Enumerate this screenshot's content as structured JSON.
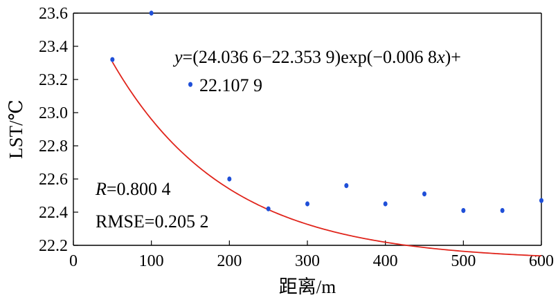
{
  "chart_data": {
    "type": "scatter",
    "xlabel": "距离/m",
    "ylabel": "LST/℃",
    "xlim": [
      0,
      600
    ],
    "ylim": [
      22.2,
      23.6
    ],
    "xticks": [
      0,
      100,
      200,
      300,
      400,
      500,
      600
    ],
    "yticks": [
      "22.2",
      "22.4",
      "22.6",
      "22.8",
      "23.0",
      "23.2",
      "23.4",
      "23.6"
    ],
    "grid": false,
    "colors": {
      "points": "#1f4fd8",
      "fit": "#e0241b",
      "axis": "#000000"
    },
    "series": [
      {
        "type": "scatter",
        "x": [
          50,
          100,
          150,
          200,
          250,
          300,
          350,
          400,
          450,
          500,
          550,
          600
        ],
        "y": [
          23.32,
          23.6,
          23.17,
          22.6,
          22.42,
          22.45,
          22.56,
          22.45,
          22.51,
          22.41,
          22.41,
          22.47
        ]
      },
      {
        "type": "line",
        "formula": "y=(24.0366-22.3539)exp(-0.0068x)+22.1079",
        "x_range": [
          50,
          600
        ]
      }
    ],
    "annotations": {
      "equation_line1_prefix": "y",
      "equation_line1_rest": "=(24.036 6−22.353 9)exp(−0.006 8",
      "equation_line1_x": "x",
      "equation_line1_end": ")+",
      "equation_line2": "22.107 9",
      "r_symbol": "R",
      "r_value": "=0.800 4",
      "rmse": "RMSE=0.205 2"
    }
  }
}
